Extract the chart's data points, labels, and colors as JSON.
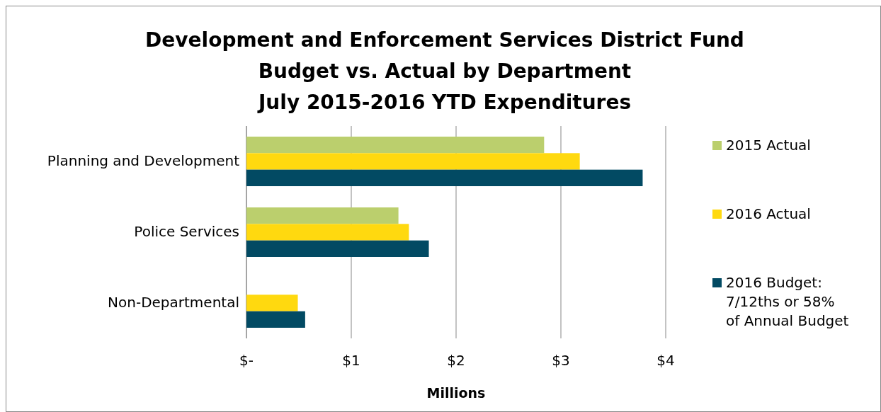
{
  "chart_data": {
    "type": "bar",
    "orientation": "horizontal",
    "title": "Development and Enforcement Services District Fund\nBudget vs. Actual by Department\nJuly 2015-2016 YTD Expenditures",
    "xlabel": "Millions",
    "categories": [
      "Planning and Development",
      "Police Services",
      "Non-Departmental"
    ],
    "series": [
      {
        "name": "2015 Actual",
        "color": "#bbcf6d",
        "values": [
          2.84,
          1.45,
          null
        ]
      },
      {
        "name": "2016 Actual",
        "color": "#ffd90f",
        "values": [
          3.18,
          1.55,
          0.49
        ]
      },
      {
        "name": "2016 Budget: 7/12ths or 58% of Annual Budget",
        "color": "#024a63",
        "values": [
          3.78,
          1.74,
          0.56
        ]
      }
    ],
    "xlim": [
      0,
      4
    ],
    "xticks": [
      {
        "value": 0,
        "label": "$-"
      },
      {
        "value": 1,
        "label": "$1"
      },
      {
        "value": 2,
        "label": "$2"
      },
      {
        "value": 3,
        "label": "$3"
      },
      {
        "value": 4,
        "label": "$4"
      }
    ],
    "grid": "x",
    "legend": "right"
  }
}
